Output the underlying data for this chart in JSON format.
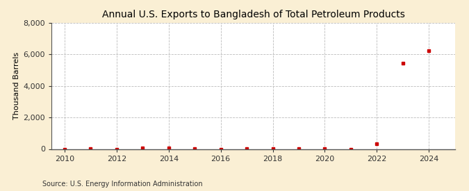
{
  "title": "Annual U.S. Exports to Bangladesh of Total Petroleum Products",
  "ylabel": "Thousand Barrels",
  "source": "Source: U.S. Energy Information Administration",
  "years": [
    2010,
    2011,
    2012,
    2013,
    2014,
    2015,
    2016,
    2017,
    2018,
    2019,
    2020,
    2021,
    2022,
    2023,
    2024
  ],
  "values": [
    0,
    14,
    0,
    57,
    83,
    24,
    0,
    42,
    38,
    11,
    24,
    0,
    340,
    5430,
    6220
  ],
  "marker_color": "#cc0000",
  "marker_size": 3.5,
  "background_color": "#faefd4",
  "plot_bg_color": "#ffffff",
  "grid_color": "#bbbbbb",
  "ylim": [
    0,
    8000
  ],
  "yticks": [
    0,
    2000,
    4000,
    6000,
    8000
  ],
  "xlim": [
    2009.5,
    2025.0
  ],
  "xticks": [
    2010,
    2012,
    2014,
    2016,
    2018,
    2020,
    2022,
    2024
  ],
  "title_fontsize": 10,
  "label_fontsize": 8,
  "tick_fontsize": 8,
  "source_fontsize": 7
}
